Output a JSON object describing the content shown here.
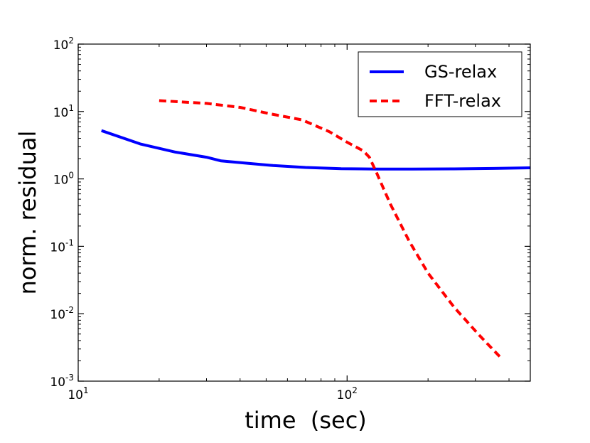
{
  "chart_data": {
    "type": "line",
    "title": "",
    "xlabel": "time  (sec)",
    "ylabel": "norm. residual",
    "xscale": "log",
    "yscale": "log",
    "xlim": [
      10,
      480
    ],
    "ylim": [
      0.001,
      100
    ],
    "x_ticks": [
      {
        "value": 10,
        "base": "10",
        "exp": "1"
      },
      {
        "value": 100,
        "base": "10",
        "exp": "2"
      }
    ],
    "y_ticks": [
      {
        "value": 0.001,
        "base": "10",
        "exp": "-3"
      },
      {
        "value": 0.01,
        "base": "10",
        "exp": "-2"
      },
      {
        "value": 0.1,
        "base": "10",
        "exp": "-1"
      },
      {
        "value": 1,
        "base": "10",
        "exp": "0"
      },
      {
        "value": 10,
        "base": "10",
        "exp": "1"
      },
      {
        "value": 100,
        "base": "10",
        "exp": "2"
      }
    ],
    "legend_position": "top-right",
    "series": [
      {
        "name": "GS-relax",
        "color": "#0000ff",
        "style": "solid",
        "x": [
          12.2,
          17,
          23,
          30,
          34,
          43,
          53,
          70,
          95,
          130,
          175,
          250,
          350,
          480
        ],
        "y": [
          5.2,
          3.3,
          2.5,
          2.1,
          1.85,
          1.7,
          1.58,
          1.48,
          1.42,
          1.4,
          1.4,
          1.41,
          1.43,
          1.46
        ]
      },
      {
        "name": "FFT-relax",
        "color": "#ff0000",
        "style": "dashed",
        "x": [
          20,
          30,
          40,
          52,
          68,
          86,
          100,
          115,
          121,
          128,
          145,
          170,
          200,
          250,
          310,
          370
        ],
        "y": [
          14.5,
          13.2,
          11.5,
          9.2,
          7.5,
          5.0,
          3.5,
          2.6,
          2.1,
          1.3,
          0.42,
          0.12,
          0.04,
          0.0125,
          0.0048,
          0.0023
        ]
      }
    ]
  }
}
